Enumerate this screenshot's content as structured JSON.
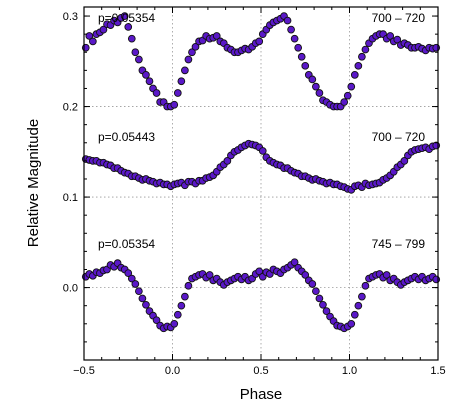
{
  "chart_data": {
    "type": "scatter",
    "xlabel": "Phase",
    "ylabel": "Relative Magnitude",
    "xlim": [
      -0.5,
      1.5
    ],
    "ylim": [
      0.31,
      -0.08
    ],
    "y_inverted": true,
    "grid": "dotted at phase 0.0 / 0.5 / 1.0 and at magnitude 0.0 / 0.1 / 0.2",
    "x_ticks": [
      -0.5,
      0.0,
      0.5,
      1.0,
      1.5
    ],
    "x_tick_labels": [
      "-0.5",
      "0.0",
      "0.5",
      "1.0",
      "1.5"
    ],
    "y_ticks": [
      0.0,
      0.1,
      0.2,
      0.3
    ],
    "y_tick_labels": [
      "0.0",
      "0.1",
      "0.2",
      "0.3"
    ],
    "marker_color": "#5a18c8",
    "marker_edge": "#111111",
    "series": [
      {
        "period_label": "p=0.05354",
        "range_label": "700 – 720",
        "x": [
          -0.49,
          -0.47,
          -0.45,
          -0.43,
          -0.41,
          -0.39,
          -0.37,
          -0.35,
          -0.33,
          -0.31,
          -0.29,
          -0.27,
          -0.25,
          -0.23,
          -0.21,
          -0.19,
          -0.17,
          -0.15,
          -0.13,
          -0.11,
          -0.09,
          -0.07,
          -0.05,
          -0.03,
          -0.01,
          0.01,
          0.03,
          0.05,
          0.07,
          0.09,
          0.11,
          0.13,
          0.15,
          0.17,
          0.19,
          0.21,
          0.23,
          0.25,
          0.27,
          0.29,
          0.31,
          0.33,
          0.35,
          0.37,
          0.39,
          0.41,
          0.43,
          0.45,
          0.47,
          0.49,
          0.51,
          0.53,
          0.55,
          0.57,
          0.59,
          0.61,
          0.63,
          0.65,
          0.67,
          0.69,
          0.71,
          0.73,
          0.75,
          0.77,
          0.79,
          0.81,
          0.83,
          0.85,
          0.87,
          0.89,
          0.91,
          0.93,
          0.95,
          0.97,
          0.99,
          1.01,
          1.03,
          1.05,
          1.07,
          1.09,
          1.11,
          1.13,
          1.15,
          1.17,
          1.19,
          1.21,
          1.23,
          1.25,
          1.27,
          1.29,
          1.31,
          1.33,
          1.35,
          1.37,
          1.39,
          1.41,
          1.43,
          1.45,
          1.47,
          1.49
        ],
        "y": [
          0.012,
          0.015,
          0.013,
          0.017,
          0.016,
          0.019,
          0.02,
          0.025,
          0.023,
          0.027,
          0.022,
          0.02,
          0.016,
          0.01,
          0.004,
          -0.004,
          -0.012,
          -0.019,
          -0.026,
          -0.031,
          -0.036,
          -0.042,
          -0.045,
          -0.043,
          -0.044,
          -0.04,
          -0.03,
          -0.02,
          -0.01,
          0.002,
          0.01,
          0.012,
          0.014,
          0.015,
          0.011,
          0.014,
          0.008,
          0.01,
          0.006,
          0.003,
          0.006,
          0.008,
          0.01,
          0.012,
          0.009,
          0.012,
          0.008,
          0.01,
          0.015,
          0.018,
          0.012,
          0.017,
          0.015,
          0.02,
          0.018,
          0.016,
          0.02,
          0.022,
          0.025,
          0.028,
          0.022,
          0.018,
          0.014,
          0.008,
          0.004,
          -0.004,
          -0.012,
          -0.019,
          -0.026,
          -0.032,
          -0.037,
          -0.042,
          -0.043,
          -0.045,
          -0.043,
          -0.04,
          -0.03,
          -0.02,
          -0.01,
          0.002,
          0.01,
          0.012,
          0.014,
          0.015,
          0.011,
          0.014,
          0.008,
          0.01,
          0.006,
          0.003,
          0.006,
          0.008,
          0.01,
          0.012,
          0.009,
          0.012,
          0.008,
          0.01,
          0.012,
          0.009
        ]
      },
      {
        "period_label": "p=0.05443",
        "range_label": "700 – 720",
        "x": [
          -0.49,
          -0.47,
          -0.45,
          -0.43,
          -0.41,
          -0.39,
          -0.37,
          -0.35,
          -0.33,
          -0.31,
          -0.29,
          -0.27,
          -0.25,
          -0.23,
          -0.21,
          -0.19,
          -0.17,
          -0.15,
          -0.13,
          -0.11,
          -0.09,
          -0.07,
          -0.05,
          -0.03,
          -0.01,
          0.01,
          0.03,
          0.05,
          0.07,
          0.09,
          0.11,
          0.13,
          0.15,
          0.17,
          0.19,
          0.21,
          0.23,
          0.25,
          0.27,
          0.29,
          0.31,
          0.33,
          0.35,
          0.37,
          0.39,
          0.41,
          0.43,
          0.45,
          0.47,
          0.49,
          0.51,
          0.53,
          0.55,
          0.57,
          0.59,
          0.61,
          0.63,
          0.65,
          0.67,
          0.69,
          0.71,
          0.73,
          0.75,
          0.77,
          0.79,
          0.81,
          0.83,
          0.85,
          0.87,
          0.89,
          0.91,
          0.93,
          0.95,
          0.97,
          0.99,
          1.01,
          1.03,
          1.05,
          1.07,
          1.09,
          1.11,
          1.13,
          1.15,
          1.17,
          1.19,
          1.21,
          1.23,
          1.25,
          1.27,
          1.29,
          1.31,
          1.33,
          1.35,
          1.37,
          1.39,
          1.41,
          1.43,
          1.45,
          1.47,
          1.49
        ],
        "y": [
          0.142,
          0.141,
          0.14,
          0.14,
          0.138,
          0.138,
          0.136,
          0.135,
          0.132,
          0.132,
          0.129,
          0.127,
          0.126,
          0.123,
          0.123,
          0.121,
          0.119,
          0.12,
          0.118,
          0.117,
          0.115,
          0.116,
          0.114,
          0.114,
          0.112,
          0.114,
          0.115,
          0.116,
          0.113,
          0.117,
          0.117,
          0.115,
          0.118,
          0.118,
          0.121,
          0.122,
          0.124,
          0.128,
          0.133,
          0.136,
          0.14,
          0.146,
          0.15,
          0.152,
          0.155,
          0.157,
          0.159,
          0.158,
          0.157,
          0.155,
          0.151,
          0.144,
          0.14,
          0.138,
          0.136,
          0.135,
          0.132,
          0.132,
          0.129,
          0.127,
          0.126,
          0.123,
          0.123,
          0.121,
          0.119,
          0.12,
          0.118,
          0.117,
          0.115,
          0.116,
          0.114,
          0.114,
          0.112,
          0.111,
          0.109,
          0.108,
          0.112,
          0.113,
          0.111,
          0.115,
          0.113,
          0.114,
          0.115,
          0.116,
          0.119,
          0.121,
          0.124,
          0.128,
          0.133,
          0.136,
          0.14,
          0.146,
          0.15,
          0.152,
          0.153,
          0.154,
          0.155,
          0.153,
          0.156,
          0.157
        ]
      },
      {
        "period_label": "p=0.05354",
        "range_label": "745 – 799",
        "x": [
          -0.49,
          -0.47,
          -0.45,
          -0.43,
          -0.41,
          -0.39,
          -0.37,
          -0.35,
          -0.33,
          -0.31,
          -0.29,
          -0.27,
          -0.25,
          -0.23,
          -0.21,
          -0.19,
          -0.17,
          -0.15,
          -0.13,
          -0.11,
          -0.09,
          -0.07,
          -0.05,
          -0.03,
          -0.01,
          0.01,
          0.03,
          0.05,
          0.07,
          0.09,
          0.11,
          0.13,
          0.15,
          0.17,
          0.19,
          0.21,
          0.23,
          0.25,
          0.27,
          0.29,
          0.31,
          0.33,
          0.35,
          0.37,
          0.39,
          0.41,
          0.43,
          0.45,
          0.47,
          0.49,
          0.51,
          0.53,
          0.55,
          0.57,
          0.59,
          0.61,
          0.63,
          0.65,
          0.67,
          0.69,
          0.71,
          0.73,
          0.75,
          0.77,
          0.79,
          0.81,
          0.83,
          0.85,
          0.87,
          0.89,
          0.91,
          0.93,
          0.95,
          0.97,
          0.99,
          1.01,
          1.03,
          1.05,
          1.07,
          1.09,
          1.11,
          1.13,
          1.15,
          1.17,
          1.19,
          1.21,
          1.23,
          1.25,
          1.27,
          1.29,
          1.31,
          1.33,
          1.35,
          1.37,
          1.39,
          1.41,
          1.43,
          1.45,
          1.47,
          1.49
        ],
        "y": [
          0.265,
          0.278,
          0.272,
          0.28,
          0.282,
          0.285,
          0.291,
          0.29,
          0.295,
          0.293,
          0.298,
          0.3,
          0.288,
          0.275,
          0.26,
          0.252,
          0.24,
          0.235,
          0.228,
          0.22,
          0.215,
          0.205,
          0.205,
          0.2,
          0.2,
          0.202,
          0.215,
          0.228,
          0.24,
          0.252,
          0.26,
          0.266,
          0.272,
          0.273,
          0.278,
          0.275,
          0.276,
          0.278,
          0.272,
          0.27,
          0.265,
          0.263,
          0.26,
          0.26,
          0.262,
          0.264,
          0.263,
          0.266,
          0.27,
          0.272,
          0.28,
          0.285,
          0.29,
          0.293,
          0.295,
          0.297,
          0.3,
          0.295,
          0.285,
          0.275,
          0.265,
          0.255,
          0.245,
          0.235,
          0.23,
          0.222,
          0.215,
          0.207,
          0.205,
          0.202,
          0.2,
          0.2,
          0.2,
          0.205,
          0.212,
          0.222,
          0.235,
          0.245,
          0.255,
          0.263,
          0.27,
          0.275,
          0.278,
          0.28,
          0.28,
          0.275,
          0.278,
          0.272,
          0.274,
          0.268,
          0.27,
          0.268,
          0.265,
          0.265,
          0.266,
          0.264,
          0.262,
          0.265,
          0.264,
          0.265
        ]
      }
    ]
  }
}
